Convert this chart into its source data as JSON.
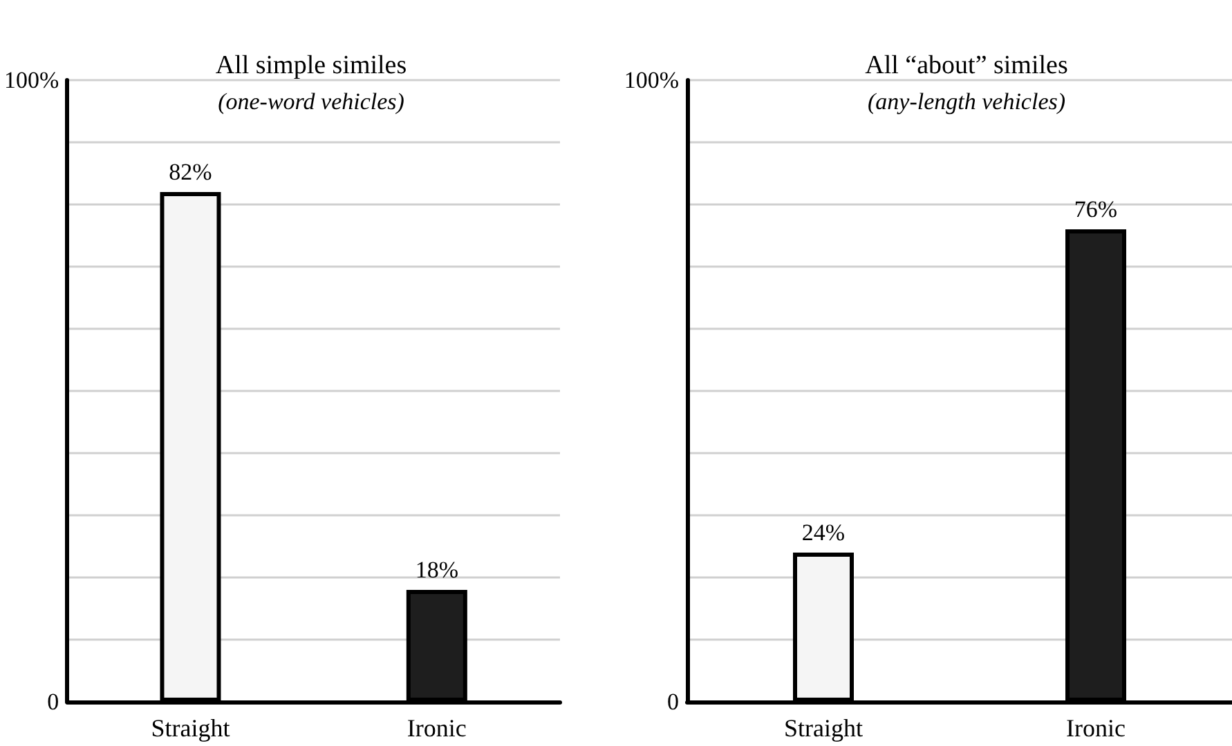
{
  "chart_data": [
    {
      "type": "bar",
      "title": "All simple similes",
      "subtitle": "(one-word vehicles)",
      "categories": [
        "Straight",
        "Ironic"
      ],
      "values": [
        82,
        18
      ],
      "colors": [
        "#f5f5f5",
        "#1e1e1e"
      ],
      "value_labels": [
        "82%",
        "18%"
      ],
      "ylim": [
        0,
        100
      ],
      "yticks": [
        {
          "value": 0,
          "label": "0"
        },
        {
          "value": 10,
          "label": null
        },
        {
          "value": 20,
          "label": null
        },
        {
          "value": 30,
          "label": null
        },
        {
          "value": 40,
          "label": null
        },
        {
          "value": 50,
          "label": null
        },
        {
          "value": 60,
          "label": null
        },
        {
          "value": 70,
          "label": null
        },
        {
          "value": 80,
          "label": null
        },
        {
          "value": 90,
          "label": null
        },
        {
          "value": 100,
          "label": "100%"
        }
      ],
      "grid": "y"
    },
    {
      "type": "bar",
      "title": "All “about” similes",
      "subtitle": "(any-length vehicles)",
      "categories": [
        "Straight",
        "Ironic"
      ],
      "values": [
        24,
        76
      ],
      "colors": [
        "#f5f5f5",
        "#1e1e1e"
      ],
      "value_labels": [
        "24%",
        "76%"
      ],
      "ylim": [
        0,
        100
      ],
      "yticks": [
        {
          "value": 0,
          "label": "0"
        },
        {
          "value": 10,
          "label": null
        },
        {
          "value": 20,
          "label": null
        },
        {
          "value": 30,
          "label": null
        },
        {
          "value": 40,
          "label": null
        },
        {
          "value": 50,
          "label": null
        },
        {
          "value": 60,
          "label": null
        },
        {
          "value": 70,
          "label": null
        },
        {
          "value": 80,
          "label": null
        },
        {
          "value": 90,
          "label": null
        },
        {
          "value": 100,
          "label": "100%"
        }
      ],
      "grid": "y"
    }
  ]
}
